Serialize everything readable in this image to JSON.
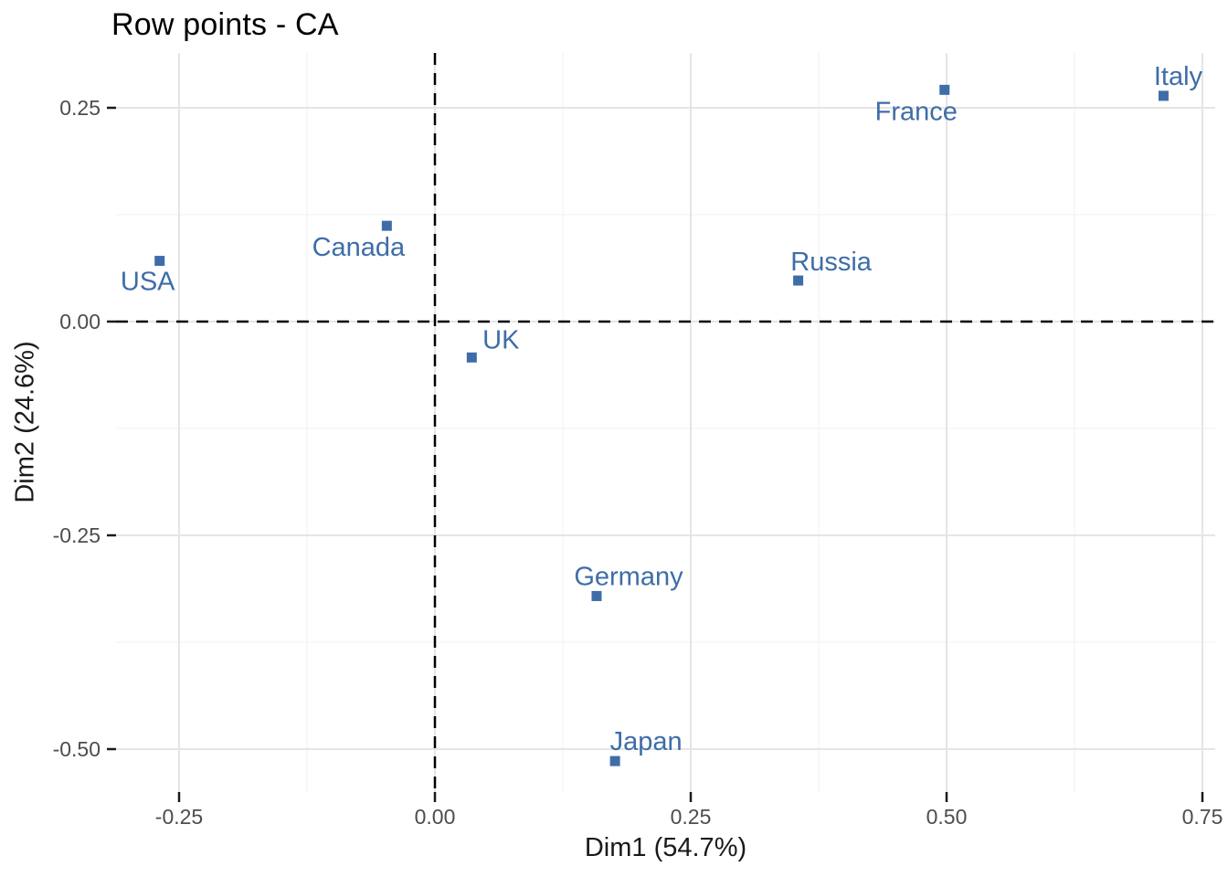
{
  "chart_data": {
    "type": "scatter",
    "title": "Row points - CA",
    "xlabel": "Dim1 (54.7%)",
    "ylabel": "Dim2 (24.6%)",
    "xlim": [
      -0.318,
      0.763
    ],
    "ylim": [
      -0.55,
      0.312
    ],
    "grid": true,
    "legend": "none",
    "marker": "square",
    "zero_lines": "dashed black at x=0 and y=0",
    "x_ticks": [
      -0.25,
      0.0,
      0.25,
      0.5,
      0.75
    ],
    "x_tick_labels": [
      "-0.25",
      "0.00",
      "0.25",
      "0.50",
      "0.75"
    ],
    "y_ticks": [
      0.25,
      0.0,
      -0.25,
      -0.5
    ],
    "y_tick_labels": [
      "0.25",
      "0.00",
      "-0.25",
      "-0.50"
    ],
    "x_minor_ticks": [
      -0.125,
      0.125,
      0.375,
      0.625
    ],
    "y_minor_ticks": [
      0.125,
      -0.125,
      -0.375
    ],
    "series": [
      {
        "name": "rows",
        "points": [
          {
            "label": "USA",
            "x": -0.269,
            "y": 0.071,
            "label_dx": -13,
            "label_dy": 23
          },
          {
            "label": "Canada",
            "x": -0.047,
            "y": 0.112,
            "label_dx": -31,
            "label_dy": 24
          },
          {
            "label": "UK",
            "x": 0.036,
            "y": -0.042,
            "label_dx": 32,
            "label_dy": -19
          },
          {
            "label": "Germany",
            "x": 0.158,
            "y": -0.321,
            "label_dx": 35,
            "label_dy": -21
          },
          {
            "label": "Japan",
            "x": 0.176,
            "y": -0.514,
            "label_dx": 34,
            "label_dy": -21
          },
          {
            "label": "Russia",
            "x": 0.355,
            "y": 0.048,
            "label_dx": 36,
            "label_dy": -20
          },
          {
            "label": "France",
            "x": 0.498,
            "y": 0.271,
            "label_dx": -31,
            "label_dy": 24
          },
          {
            "label": "Italy",
            "x": 0.712,
            "y": 0.264,
            "label_dx": 16,
            "label_dy": -21
          }
        ]
      }
    ],
    "colors": {
      "point": "#3E6DA8",
      "point_label": "#3E6DA8",
      "grid_major": "#E5E5E5",
      "grid_minor": "#F1F1F1",
      "tick_mark": "#1a1a1a",
      "tick_label": "#4D4D4D",
      "zero_line": "#000000",
      "background": "#FFFFFF"
    }
  }
}
